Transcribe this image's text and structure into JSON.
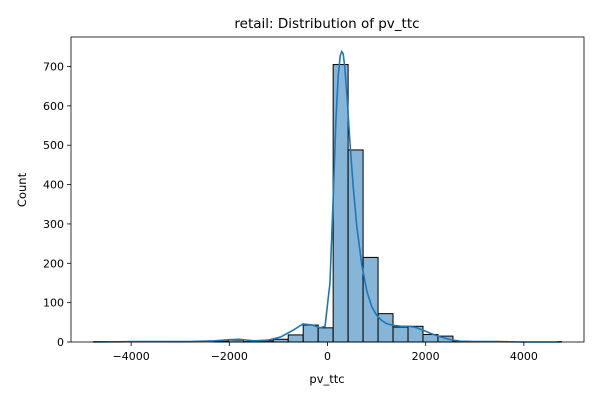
{
  "chart_data": {
    "type": "bar",
    "title": "retail: Distribution of pv_ttc",
    "xlabel": "pv_ttc",
    "ylabel": "Count",
    "xlim": [
      -5225,
      5225
    ],
    "ylim": [
      0,
      775
    ],
    "xticks": [
      -4000,
      -2000,
      0,
      2000,
      4000
    ],
    "yticks": [
      0,
      100,
      200,
      300,
      400,
      500,
      600,
      700
    ],
    "xtick_labels": [
      "−4000",
      "−2000",
      "0",
      "2000",
      "4000"
    ],
    "ytick_labels": [
      "0",
      "100",
      "200",
      "300",
      "400",
      "500",
      "600",
      "700"
    ],
    "grid": false,
    "bins": [
      {
        "x0": -4765,
        "x1": -4460,
        "count": 1
      },
      {
        "x0": -4460,
        "x1": -4155,
        "count": 0
      },
      {
        "x0": -4155,
        "x1": -3850,
        "count": 0
      },
      {
        "x0": -3850,
        "x1": -3545,
        "count": 0
      },
      {
        "x0": -3545,
        "x1": -3240,
        "count": 0
      },
      {
        "x0": -3240,
        "x1": -2935,
        "count": 1
      },
      {
        "x0": -2935,
        "x1": -2630,
        "count": 0
      },
      {
        "x0": -2630,
        "x1": -2325,
        "count": 0
      },
      {
        "x0": -2325,
        "x1": -2020,
        "count": 2
      },
      {
        "x0": -2020,
        "x1": -1715,
        "count": 5
      },
      {
        "x0": -1715,
        "x1": -1410,
        "count": 1
      },
      {
        "x0": -1410,
        "x1": -1105,
        "count": 3
      },
      {
        "x0": -1105,
        "x1": -800,
        "count": 7
      },
      {
        "x0": -800,
        "x1": -495,
        "count": 18
      },
      {
        "x0": -495,
        "x1": -190,
        "count": 43
      },
      {
        "x0": -190,
        "x1": 115,
        "count": 36
      },
      {
        "x0": 115,
        "x1": 420,
        "count": 705
      },
      {
        "x0": 420,
        "x1": 725,
        "count": 488
      },
      {
        "x0": 725,
        "x1": 1030,
        "count": 215
      },
      {
        "x0": 1030,
        "x1": 1335,
        "count": 72
      },
      {
        "x0": 1335,
        "x1": 1640,
        "count": 38
      },
      {
        "x0": 1640,
        "x1": 1945,
        "count": 40
      },
      {
        "x0": 1945,
        "x1": 2250,
        "count": 19
      },
      {
        "x0": 2250,
        "x1": 2555,
        "count": 15
      },
      {
        "x0": 2555,
        "x1": 2860,
        "count": 2
      },
      {
        "x0": 2860,
        "x1": 3165,
        "count": 1
      },
      {
        "x0": 3165,
        "x1": 3470,
        "count": 0
      },
      {
        "x0": 3470,
        "x1": 3775,
        "count": 1
      },
      {
        "x0": 3775,
        "x1": 4080,
        "count": 0
      },
      {
        "x0": 4080,
        "x1": 4385,
        "count": 0
      },
      {
        "x0": 4385,
        "x1": 4690,
        "count": 0
      },
      {
        "x0": 4690,
        "x1": 4765,
        "count": 1
      }
    ],
    "kde": {
      "x": [
        -4765,
        -4000,
        -3300,
        -2800,
        -2300,
        -2000,
        -1800,
        -1500,
        -1200,
        -950,
        -700,
        -500,
        -300,
        -150,
        -50,
        50,
        120,
        170,
        220,
        260,
        290,
        320,
        350,
        400,
        450,
        520,
        600,
        700,
        800,
        900,
        1000,
        1100,
        1200,
        1350,
        1500,
        1650,
        1800,
        1950,
        2100,
        2300,
        2500,
        2700,
        3000,
        3500,
        4000,
        4765
      ],
      "y": [
        0,
        1,
        1,
        1,
        3,
        6,
        7,
        3,
        5,
        13,
        30,
        46,
        43,
        36,
        40,
        150,
        380,
        560,
        680,
        728,
        738,
        732,
        700,
        620,
        520,
        400,
        290,
        195,
        130,
        90,
        68,
        55,
        47,
        42,
        40,
        40,
        37,
        30,
        22,
        13,
        6,
        2,
        1,
        1,
        0,
        0
      ]
    },
    "colors": {
      "bar_fill": "#86b5d8",
      "bar_edge": "#000000",
      "kde_line": "#1f77b4"
    }
  }
}
